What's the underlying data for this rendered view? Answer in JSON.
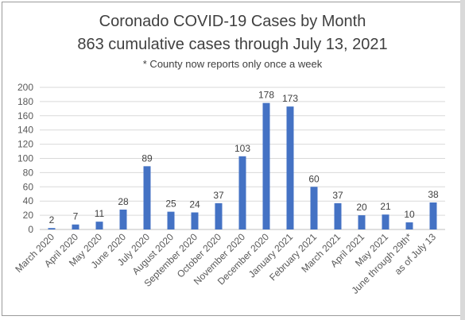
{
  "chart_data": {
    "type": "bar",
    "title": "Coronado COVID-19 Cases by Month",
    "subtitle": "863 cumulative cases through July 13, 2021",
    "note": "* County now reports only once a week",
    "categories": [
      "March 2020",
      "April 2020",
      "May 2020",
      "June 2020",
      "July 2020",
      "August 2020",
      "September 2020",
      "October 2020",
      "November 2020",
      "December 2020",
      "January 2021",
      "February 2021",
      "March 2021",
      "April 2021",
      "May 2021",
      "June through 29th*",
      "as of July 13"
    ],
    "values": [
      2,
      7,
      11,
      28,
      89,
      25,
      24,
      37,
      103,
      178,
      173,
      60,
      37,
      20,
      21,
      10,
      38
    ],
    "yticks": [
      0,
      20,
      40,
      60,
      80,
      100,
      120,
      140,
      160,
      180,
      200
    ],
    "ylim": [
      0,
      200
    ],
    "xlabel": "",
    "ylabel": "",
    "grid": true,
    "legend": "none",
    "bar_color": "#4472c4",
    "grid_color": "#d9d9d9"
  }
}
